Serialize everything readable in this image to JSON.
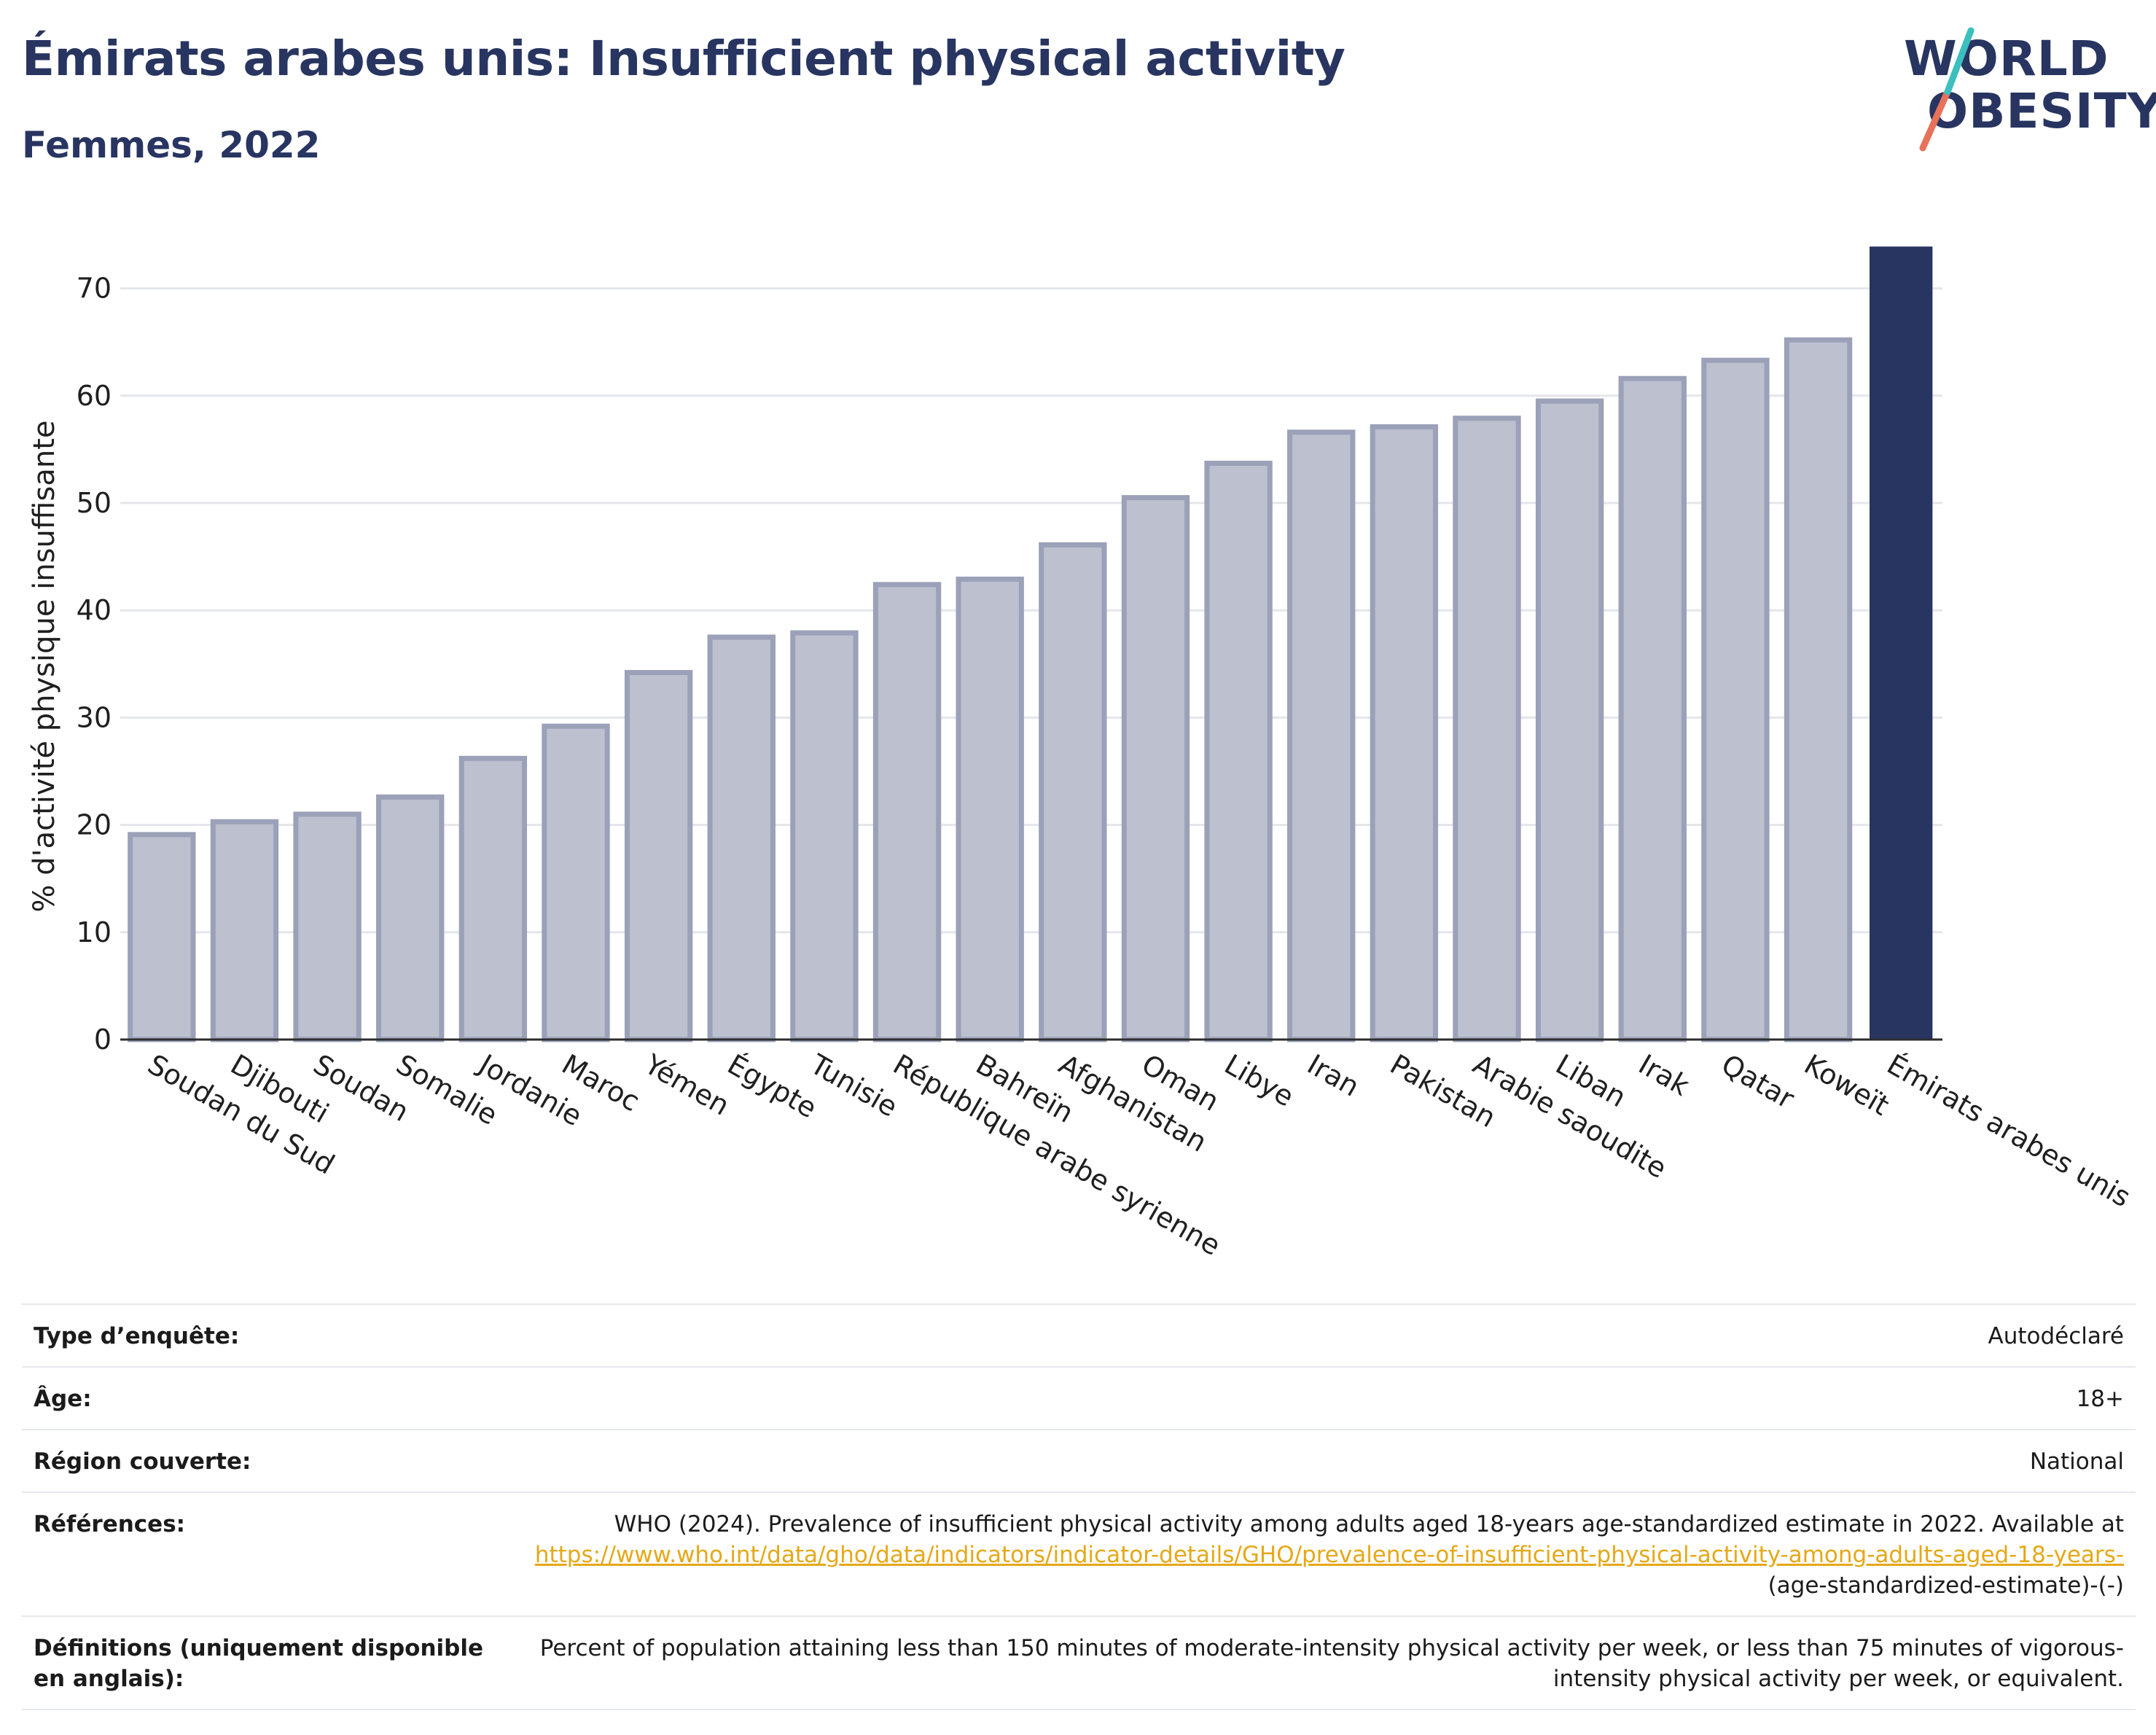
{
  "header": {
    "title": "Émirats arabes unis: Insufficient physical activity",
    "subtitle": "Femmes, 2022"
  },
  "logo": {
    "line1": "WORLD",
    "line2": "OBESITY",
    "colors": {
      "navy": "#283561",
      "teal": "#3bbfbf",
      "coral": "#e8715a"
    }
  },
  "chart_data": {
    "type": "bar",
    "title": "",
    "xlabel": "",
    "ylabel": "% d'activité physique insuffisante",
    "ylim": [
      0,
      75
    ],
    "yticks": [
      0,
      10,
      20,
      30,
      40,
      50,
      60,
      70
    ],
    "grid": true,
    "legend": "none",
    "categories": [
      "Soudan du Sud",
      "Djibouti",
      "Soudan",
      "Somalie",
      "Jordanie",
      "Maroc",
      "Yémen",
      "Égypte",
      "Tunisie",
      "République arabe syrienne",
      "Bahreïn",
      "Afghanistan",
      "Oman",
      "Libye",
      "Iran",
      "Pakistan",
      "Arabie saoudite",
      "Liban",
      "Irak",
      "Qatar",
      "Koweït",
      "Émirats arabes unis"
    ],
    "values": [
      19.1,
      20.3,
      21.0,
      22.6,
      26.2,
      29.2,
      34.2,
      37.5,
      37.9,
      42.4,
      42.9,
      46.1,
      50.5,
      53.7,
      56.6,
      57.1,
      57.9,
      59.5,
      61.6,
      63.3,
      65.2,
      73.9
    ],
    "highlight": "Émirats arabes unis",
    "colors": {
      "bar": "#bcc0cf",
      "bar_edge": "#9aa1b8",
      "highlight": "#283561",
      "grid": "#e4e6ec",
      "axis": "#2d2d2d"
    }
  },
  "meta": {
    "survey_label": "Type d’enquête:",
    "survey_value": "Autodéclaré",
    "age_label": "Âge:",
    "age_value": "18+",
    "region_label": "Région couverte:",
    "region_value": "National",
    "refs_label": "Références:",
    "refs_text": "WHO (2024). Prevalence of insufficient physical activity among adults aged 18-years age-standardized estimate in 2022. Available at",
    "refs_link": "https://www.who.int/data/gho/data/indicators/indicator-details/GHO/prevalence-of-insufficient-physical-activity-among-adults-aged-18-years-",
    "refs_tail": "(age-standardized-estimate)-(-)",
    "defs_label": "Définitions (uniquement disponible en anglais):",
    "defs_value": "Percent of population attaining less than 150 minutes of moderate-intensity physical activity per week, or less than 75 minutes of vigorous-intensity physical activity per week, or equivalent."
  }
}
